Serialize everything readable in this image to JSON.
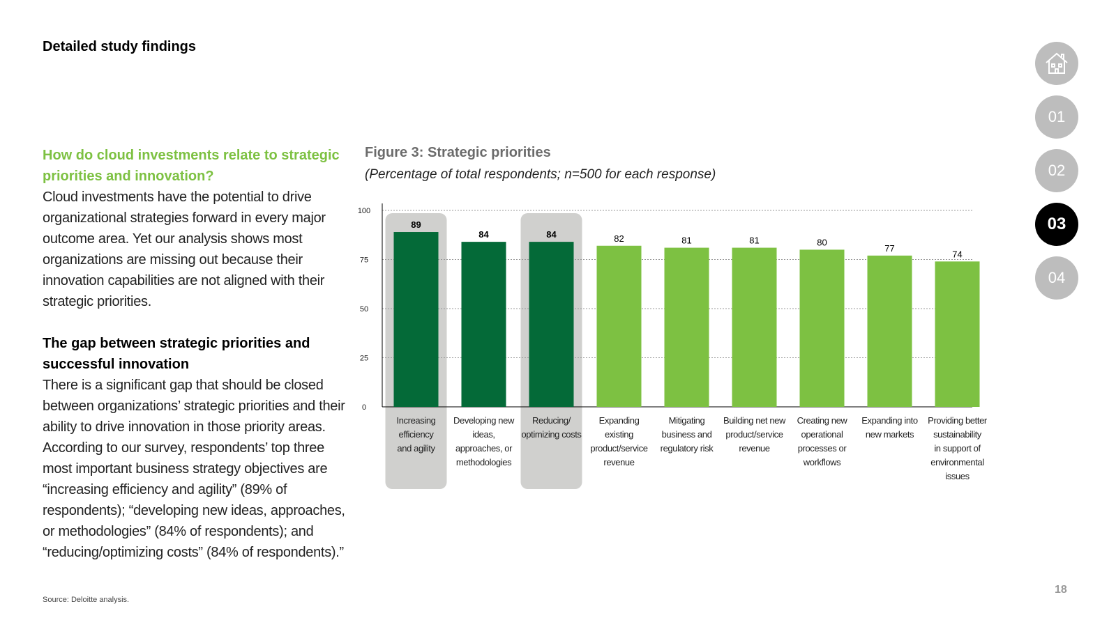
{
  "page": {
    "title": "Detailed study findings",
    "page_number": "18",
    "source": "Source: Deloitte analysis."
  },
  "left": {
    "heading1": "How do cloud investments relate to strategic priorities and innovation?",
    "para1": "Cloud investments have the potential to drive organizational strategies forward in every major outcome area. Yet our analysis shows most organizations are missing out because their innovation capabilities are not aligned with their strategic priorities.",
    "heading2": "The gap between strategic priorities and successful innovation",
    "para2": "There is a significant gap that should be closed between organizations’ strategic priorities and their ability to drive innovation in those priority areas. According to our survey, respondents’ top three most important business strategy objectives are “increasing efficiency and agility” (89% of respondents); “developing new ideas, approaches, or methodologies” (84% of respondents); and “reducing/optimizing costs” (84% of respondents).”"
  },
  "figure": {
    "title": "Figure 3: Strategic priorities",
    "subtitle": "(Percentage of total respondents; n=500 for each response)"
  },
  "nav": {
    "home_icon": "home-icon",
    "items": [
      "01",
      "02",
      "03",
      "04"
    ],
    "active": "03"
  },
  "colors": {
    "dark_green": "#046a38",
    "light_green": "#7dc142",
    "highlight": "#d0d0ce",
    "accent_text": "#7dc142"
  },
  "chart_data": {
    "type": "bar",
    "title": "Figure 3: Strategic priorities",
    "subtitle": "(Percentage of total respondents; n=500 for each response)",
    "categories": [
      "Increasing efficiency and agility",
      "Developing new ideas, approaches, or methodologies",
      "Reducing/ optimizing costs",
      "Expanding existing product/service revenue",
      "Mitigating business and regulatory risk",
      "Building net new product/service revenue",
      "Creating new operational processes or workflows",
      "Expanding into new markets",
      "Providing better sustainability in support of environmental issues"
    ],
    "category_lines": [
      [
        "Increasing",
        "efficiency",
        "and agility"
      ],
      [
        "Developing new",
        "ideas,",
        "approaches, or",
        "methodologies"
      ],
      [
        "Reducing/",
        "optimizing costs"
      ],
      [
        "Expanding",
        "existing",
        "product/service",
        "revenue"
      ],
      [
        "Mitigating",
        "business and",
        "regulatory risk"
      ],
      [
        "Building net new",
        "product/service",
        "revenue"
      ],
      [
        "Creating new",
        "operational",
        "processes or",
        "workflows"
      ],
      [
        "Expanding into",
        "new markets"
      ],
      [
        "Providing better",
        "sustainability",
        "in support of",
        "environmental",
        "issues"
      ]
    ],
    "values": [
      89,
      84,
      84,
      82,
      81,
      81,
      80,
      77,
      74
    ],
    "top_three": [
      true,
      true,
      true,
      false,
      false,
      false,
      false,
      false,
      false
    ],
    "highlighted": [
      true,
      false,
      true,
      false,
      false,
      false,
      false,
      false,
      false
    ],
    "yticks": [
      0,
      25,
      50,
      75,
      100
    ],
    "ylim": [
      0,
      100
    ],
    "xlabel": "",
    "ylabel": "",
    "grid": true
  }
}
